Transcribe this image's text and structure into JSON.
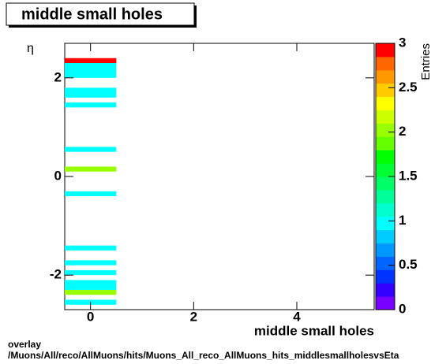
{
  "chart_data": {
    "type": "heatmap",
    "title": "middle small holes",
    "x_label": "middle small holes",
    "y_label": "η",
    "z_label": "Entries",
    "xlim": [
      -0.5,
      5.5
    ],
    "ylim": [
      -2.7,
      2.7
    ],
    "zlim": [
      0,
      3
    ],
    "xticks": [
      0,
      2,
      4
    ],
    "yticks": [
      -2,
      0,
      2
    ],
    "zticks": [
      0,
      0.5,
      1,
      1.5,
      2,
      2.5,
      3
    ],
    "palette": [
      "#7700ff",
      "#3300ff",
      "#0033ff",
      "#0066ff",
      "#0099ff",
      "#00ccff",
      "#00ffff",
      "#00ffcc",
      "#00ff99",
      "#00ff66",
      "#00ff33",
      "#00ff00",
      "#66ff00",
      "#99ff00",
      "#ccff00",
      "#ffff00",
      "#ffcc00",
      "#ff9900",
      "#ff6600",
      "#ff0000"
    ],
    "cells": [
      {
        "x": [
          -0.5,
          0.5
        ],
        "y": [
          2.3,
          2.4
        ],
        "value": 3
      },
      {
        "x": [
          -0.5,
          0.5
        ],
        "y": [
          2.0,
          2.3
        ],
        "value": 1
      },
      {
        "x": [
          -0.5,
          0.5
        ],
        "y": [
          1.6,
          1.8
        ],
        "value": 1
      },
      {
        "x": [
          -0.5,
          0.5
        ],
        "y": [
          1.4,
          1.5
        ],
        "value": 1
      },
      {
        "x": [
          -0.5,
          0.5
        ],
        "y": [
          0.5,
          0.6
        ],
        "value": 1
      },
      {
        "x": [
          -0.5,
          0.5
        ],
        "y": [
          0.1,
          0.2
        ],
        "value": 2
      },
      {
        "x": [
          -0.5,
          0.5
        ],
        "y": [
          -0.4,
          -0.3
        ],
        "value": 1
      },
      {
        "x": [
          -0.5,
          0.5
        ],
        "y": [
          -1.5,
          -1.4
        ],
        "value": 1
      },
      {
        "x": [
          -0.5,
          0.5
        ],
        "y": [
          -1.8,
          -1.7
        ],
        "value": 1
      },
      {
        "x": [
          -0.5,
          0.5
        ],
        "y": [
          -2.0,
          -1.9
        ],
        "value": 1
      },
      {
        "x": [
          -0.5,
          0.5
        ],
        "y": [
          -2.3,
          -2.1
        ],
        "value": 1
      },
      {
        "x": [
          -0.5,
          0.5
        ],
        "y": [
          -2.4,
          -2.3
        ],
        "value": 2
      },
      {
        "x": [
          -0.5,
          0.5
        ],
        "y": [
          -2.6,
          -2.5
        ],
        "value": 1
      }
    ],
    "footer": [
      "overlay",
      "/Muons/All/reco/AllMuons/hits/Muons_All_reco_AllMuons_hits_middlesmallholesvsEta"
    ]
  }
}
